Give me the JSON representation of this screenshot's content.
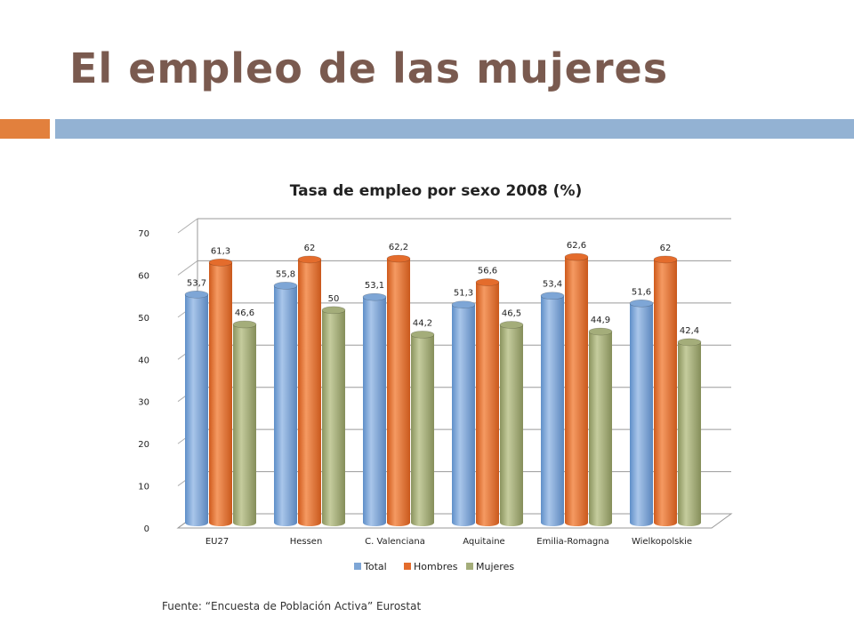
{
  "page": {
    "title": "El empleo de las mujeres",
    "source": "Fuente: “Encuesta de Población Activa” Eurostat"
  },
  "colors": {
    "accent": "#e2803d",
    "title_bar": "#93b2d3",
    "title_text": "#7a5a4f"
  },
  "chart_data": {
    "type": "bar",
    "title": "Tasa de empleo por sexo 2008 (%)",
    "xlabel": "",
    "ylabel": "",
    "ylim": [
      0,
      70
    ],
    "yticks": [
      0,
      10,
      20,
      30,
      40,
      50,
      60,
      70
    ],
    "grid": true,
    "legend_position": "bottom",
    "categories": [
      "EU27",
      "Hessen",
      "C. Valenciana",
      "Aquitaine",
      "Emilia-Romagna",
      "Wielkopolskie"
    ],
    "series": [
      {
        "name": "Total",
        "color": "#7ea6d6",
        "values": [
          53.7,
          55.8,
          53.1,
          51.3,
          53.4,
          51.6
        ],
        "labels": [
          "53,7",
          "55,8",
          "53,1",
          "51,3",
          "53,4",
          "51,6"
        ]
      },
      {
        "name": "Hombres",
        "color": "#e46c2c",
        "values": [
          61.3,
          62,
          62.2,
          56.6,
          62.6,
          62
        ],
        "labels": [
          "61,3",
          "62",
          "62,2",
          "56,6",
          "62,6",
          "62"
        ]
      },
      {
        "name": "Mujeres",
        "color": "#a4ad7a",
        "values": [
          46.6,
          50,
          44.2,
          46.5,
          44.9,
          42.4
        ],
        "labels": [
          "46,6",
          "50",
          "44,2",
          "46,5",
          "44,9",
          "42,4"
        ]
      }
    ]
  }
}
